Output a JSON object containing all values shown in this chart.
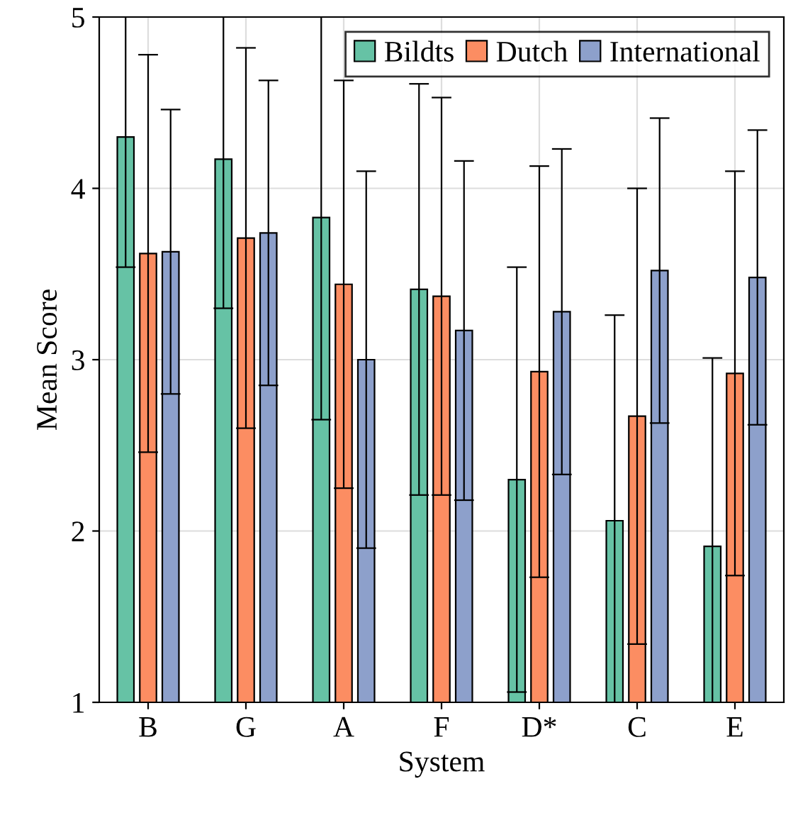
{
  "chart_data": {
    "type": "bar",
    "xlabel": "System",
    "ylabel": "Mean Score",
    "categories": [
      "B",
      "G",
      "A",
      "F",
      "D*",
      "C",
      "E"
    ],
    "series": [
      {
        "name": "Bildts",
        "color": "#66c2a5",
        "values": [
          4.3,
          4.17,
          3.83,
          3.41,
          2.3,
          2.06,
          1.91
        ],
        "errors": [
          0.76,
          0.87,
          1.18,
          1.2,
          1.24,
          1.2,
          1.1
        ]
      },
      {
        "name": "Dutch",
        "color": "#fc8d62",
        "values": [
          3.62,
          3.71,
          3.44,
          3.37,
          2.93,
          2.67,
          2.92
        ],
        "errors": [
          1.16,
          1.11,
          1.19,
          1.16,
          1.2,
          1.33,
          1.18
        ]
      },
      {
        "name": "International",
        "color": "#8da0cb",
        "values": [
          3.63,
          3.74,
          3.0,
          3.17,
          3.28,
          3.52,
          3.48
        ],
        "errors": [
          0.83,
          0.89,
          1.1,
          0.99,
          0.95,
          0.89,
          0.86
        ]
      }
    ],
    "ylim": [
      1,
      5
    ],
    "yticks": [
      1,
      2,
      3,
      4,
      5
    ],
    "grid": true,
    "legend": "top right"
  }
}
